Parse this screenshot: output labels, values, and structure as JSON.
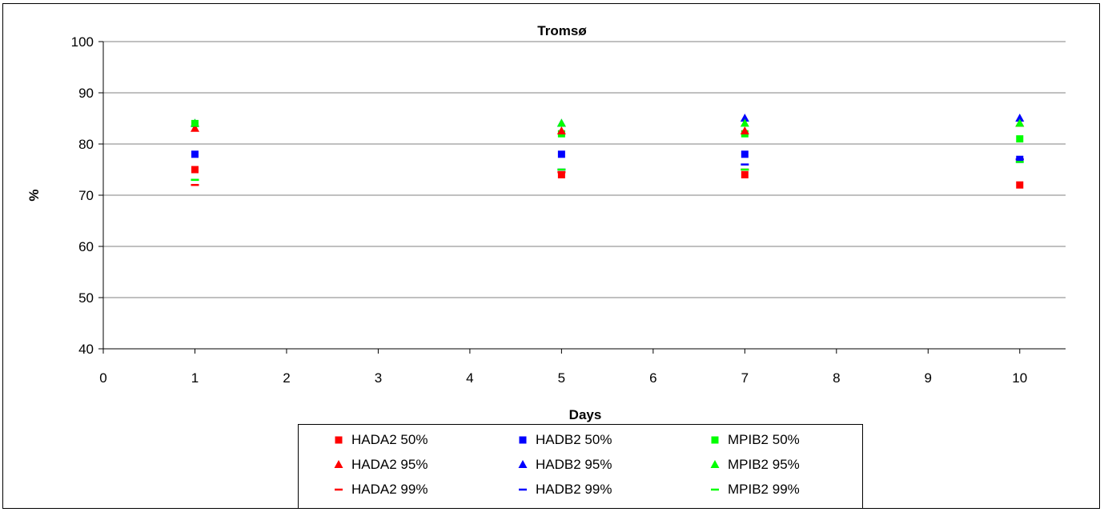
{
  "chart_data": {
    "type": "scatter",
    "title": "Tromsø",
    "xlabel": "Days",
    "ylabel": "%",
    "xlim": [
      0,
      10.5
    ],
    "ylim": [
      40,
      100
    ],
    "xticks": [
      0,
      1,
      2,
      3,
      4,
      5,
      6,
      7,
      8,
      9,
      10
    ],
    "yticks": [
      40,
      50,
      60,
      70,
      80,
      90,
      100
    ],
    "grid": "horizontal",
    "legend_position": "bottom",
    "series": [
      {
        "name": "HADA2 50%",
        "marker": "square",
        "color": "#ff0000",
        "points": [
          [
            1,
            75
          ],
          [
            5,
            74
          ],
          [
            7,
            74
          ],
          [
            10,
            72
          ]
        ]
      },
      {
        "name": "HADB2 50%",
        "marker": "square",
        "color": "#0000ff",
        "points": [
          [
            1,
            78
          ],
          [
            5,
            78
          ],
          [
            7,
            78
          ],
          [
            10,
            77
          ]
        ]
      },
      {
        "name": "MPIB2 50%",
        "marker": "square",
        "color": "#00ff00",
        "points": [
          [
            1,
            84
          ],
          [
            5,
            82
          ],
          [
            7,
            82
          ],
          [
            10,
            81
          ]
        ]
      },
      {
        "name": "HADA2 95%",
        "marker": "triangle",
        "color": "#ff0000",
        "points": [
          [
            1,
            83
          ],
          [
            5,
            82.5
          ],
          [
            7,
            82.5
          ],
          [
            10,
            84
          ]
        ]
      },
      {
        "name": "HADB2 95%",
        "marker": "triangle",
        "color": "#0000ff",
        "points": [
          [
            1,
            84
          ],
          [
            5,
            84
          ],
          [
            7,
            85
          ],
          [
            10,
            85
          ]
        ]
      },
      {
        "name": "MPIB2 95%",
        "marker": "triangle",
        "color": "#00ff00",
        "points": [
          [
            1,
            84
          ],
          [
            5,
            84
          ],
          [
            7,
            84
          ],
          [
            10,
            84
          ]
        ]
      },
      {
        "name": "HADA2 99%",
        "marker": "dash",
        "color": "#ff0000",
        "points": [
          [
            1,
            72
          ],
          [
            5,
            74.5
          ],
          [
            7,
            75
          ],
          [
            10,
            77
          ]
        ]
      },
      {
        "name": "HADB2 99%",
        "marker": "dash",
        "color": "#0000ff",
        "points": [
          [
            1,
            73
          ],
          [
            5,
            75
          ],
          [
            7,
            76
          ],
          [
            10,
            77
          ]
        ]
      },
      {
        "name": "MPIB2 99%",
        "marker": "dash",
        "color": "#00ff00",
        "points": [
          [
            1,
            73
          ],
          [
            5,
            75
          ],
          [
            7,
            75
          ],
          [
            10,
            76.5
          ]
        ]
      }
    ]
  }
}
